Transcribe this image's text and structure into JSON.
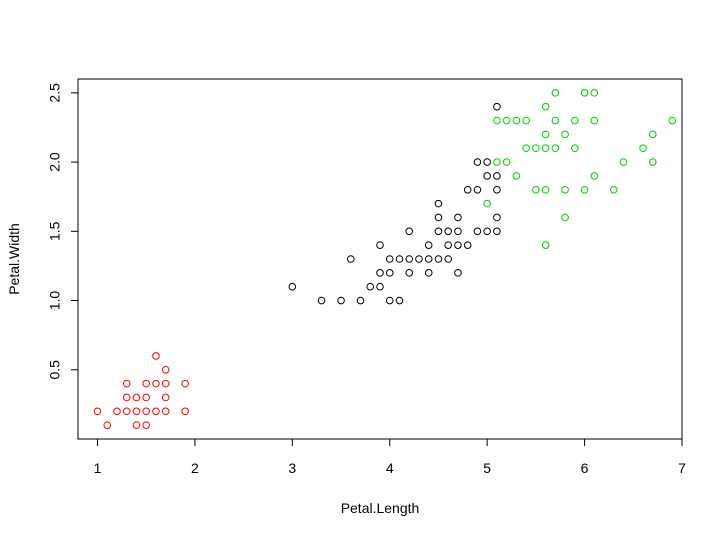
{
  "chart_data": {
    "type": "scatter",
    "title": "",
    "xlabel": "Petal.Length",
    "ylabel": "Petal.Width",
    "xlim": [
      0.8,
      7.0
    ],
    "ylim": [
      0.0,
      2.6
    ],
    "x_ticks": [
      "1",
      "2",
      "3",
      "4",
      "5",
      "6",
      "7"
    ],
    "y_ticks": [
      "0.5",
      "1.0",
      "1.5",
      "2.0",
      "2.5"
    ],
    "grid": false,
    "legend": "none",
    "series": [
      {
        "color": "#ff0000",
        "points": [
          [
            1.0,
            0.2
          ],
          [
            1.1,
            0.1
          ],
          [
            1.2,
            0.2
          ],
          [
            1.3,
            0.2
          ],
          [
            1.3,
            0.3
          ],
          [
            1.3,
            0.4
          ],
          [
            1.4,
            0.1
          ],
          [
            1.4,
            0.2
          ],
          [
            1.4,
            0.3
          ],
          [
            1.5,
            0.1
          ],
          [
            1.5,
            0.2
          ],
          [
            1.5,
            0.3
          ],
          [
            1.5,
            0.4
          ],
          [
            1.6,
            0.2
          ],
          [
            1.6,
            0.4
          ],
          [
            1.6,
            0.6
          ],
          [
            1.7,
            0.2
          ],
          [
            1.7,
            0.3
          ],
          [
            1.7,
            0.4
          ],
          [
            1.7,
            0.5
          ],
          [
            1.9,
            0.2
          ],
          [
            1.9,
            0.4
          ]
        ]
      },
      {
        "color": "#000000",
        "points": [
          [
            3.0,
            1.1
          ],
          [
            3.3,
            1.0
          ],
          [
            3.5,
            1.0
          ],
          [
            3.6,
            1.3
          ],
          [
            3.7,
            1.0
          ],
          [
            3.8,
            1.1
          ],
          [
            3.9,
            1.1
          ],
          [
            3.9,
            1.2
          ],
          [
            3.9,
            1.4
          ],
          [
            4.0,
            1.0
          ],
          [
            4.0,
            1.2
          ],
          [
            4.0,
            1.3
          ],
          [
            4.1,
            1.0
          ],
          [
            4.1,
            1.3
          ],
          [
            4.2,
            1.2
          ],
          [
            4.2,
            1.3
          ],
          [
            4.2,
            1.5
          ],
          [
            4.3,
            1.3
          ],
          [
            4.4,
            1.2
          ],
          [
            4.4,
            1.3
          ],
          [
            4.4,
            1.4
          ],
          [
            4.5,
            1.3
          ],
          [
            4.5,
            1.5
          ],
          [
            4.5,
            1.6
          ],
          [
            4.5,
            1.7
          ],
          [
            4.6,
            1.3
          ],
          [
            4.6,
            1.4
          ],
          [
            4.6,
            1.5
          ],
          [
            4.7,
            1.2
          ],
          [
            4.7,
            1.4
          ],
          [
            4.7,
            1.5
          ],
          [
            4.7,
            1.6
          ],
          [
            4.8,
            1.4
          ],
          [
            4.8,
            1.8
          ],
          [
            4.9,
            1.5
          ],
          [
            4.9,
            1.8
          ],
          [
            4.9,
            2.0
          ],
          [
            5.0,
            1.5
          ],
          [
            5.0,
            1.9
          ],
          [
            5.0,
            2.0
          ],
          [
            5.1,
            1.5
          ],
          [
            5.1,
            1.6
          ],
          [
            5.1,
            1.8
          ],
          [
            5.1,
            1.9
          ],
          [
            5.1,
            2.4
          ]
        ]
      },
      {
        "color": "#00cd00",
        "points": [
          [
            5.0,
            1.7
          ],
          [
            5.1,
            2.0
          ],
          [
            5.1,
            2.3
          ],
          [
            5.2,
            2.0
          ],
          [
            5.2,
            2.3
          ],
          [
            5.3,
            1.9
          ],
          [
            5.3,
            2.3
          ],
          [
            5.4,
            2.1
          ],
          [
            5.4,
            2.3
          ],
          [
            5.5,
            1.8
          ],
          [
            5.5,
            2.1
          ],
          [
            5.6,
            1.4
          ],
          [
            5.6,
            1.8
          ],
          [
            5.6,
            2.1
          ],
          [
            5.6,
            2.2
          ],
          [
            5.6,
            2.4
          ],
          [
            5.7,
            2.1
          ],
          [
            5.7,
            2.3
          ],
          [
            5.7,
            2.5
          ],
          [
            5.8,
            1.6
          ],
          [
            5.8,
            1.8
          ],
          [
            5.8,
            2.2
          ],
          [
            5.9,
            2.1
          ],
          [
            5.9,
            2.3
          ],
          [
            6.0,
            1.8
          ],
          [
            6.0,
            2.5
          ],
          [
            6.1,
            1.9
          ],
          [
            6.1,
            2.3
          ],
          [
            6.1,
            2.5
          ],
          [
            6.3,
            1.8
          ],
          [
            6.4,
            2.0
          ],
          [
            6.6,
            2.1
          ],
          [
            6.7,
            2.0
          ],
          [
            6.7,
            2.2
          ],
          [
            6.9,
            2.3
          ]
        ]
      }
    ]
  }
}
